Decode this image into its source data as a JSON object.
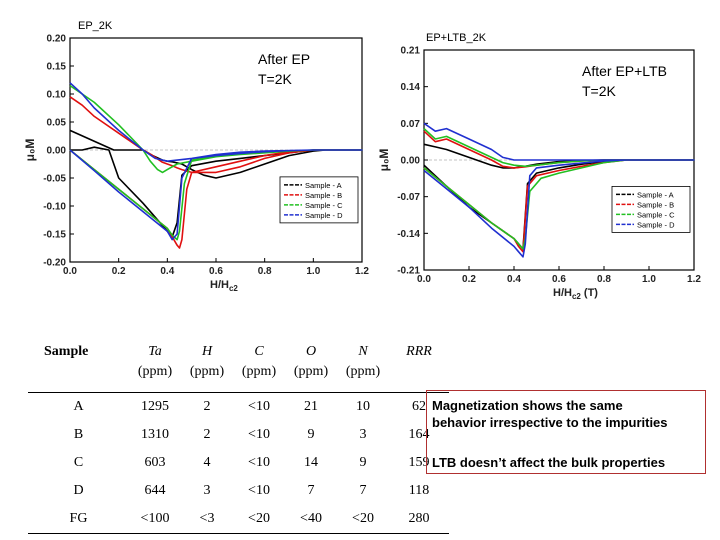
{
  "chart_data": [
    {
      "type": "line",
      "panel_tag": "EP_2K",
      "annotation": [
        "After EP",
        "T=2K"
      ],
      "xlabel": "H/H",
      "xlabel_sub": "c2",
      "ylabel": "μ₀M",
      "xlim": [
        0.0,
        1.2
      ],
      "ylim": [
        -0.2,
        0.2
      ],
      "x_ticks": [
        "0.0",
        "0.2",
        "0.4",
        "0.6",
        "0.8",
        "1.0",
        "1.2"
      ],
      "y_ticks": [
        "0.20",
        "0.15",
        "0.10",
        "0.05",
        "0.00",
        "-0.05",
        "-0.10",
        "-0.15",
        "-0.20"
      ],
      "legend_position": "right",
      "series": [
        {
          "name": "Sample - A",
          "color": "#000000",
          "x": [
            0.0,
            0.18,
            0.2,
            0.3,
            0.34,
            0.38,
            0.4,
            0.42,
            0.44,
            0.46,
            0.48,
            0.5,
            0.55,
            0.6,
            0.7,
            0.8,
            0.9,
            1.0,
            1.05,
            1.1,
            1.15,
            1.2,
            1.15,
            1.0,
            0.9,
            0.8,
            0.7,
            0.6,
            0.5,
            0.46,
            0.44,
            0.42,
            0.4,
            0.35,
            0.3,
            0.2,
            0.16,
            0.1,
            0.05,
            0.0
          ],
          "y": [
            0.035,
            0.0,
            0.0,
            0.0,
            -0.01,
            -0.018,
            -0.02,
            -0.021,
            -0.023,
            -0.025,
            -0.03,
            -0.035,
            -0.045,
            -0.05,
            -0.04,
            -0.025,
            -0.01,
            -0.002,
            0.0,
            0.0,
            0.0,
            0.0,
            0.0,
            0.0,
            -0.005,
            -0.01,
            -0.015,
            -0.02,
            -0.028,
            -0.045,
            -0.13,
            -0.155,
            -0.145,
            -0.12,
            -0.095,
            -0.05,
            0.0,
            0.005,
            0.0,
            0.0
          ]
        },
        {
          "name": "Sample - B",
          "color": "#e01010",
          "x": [
            0.0,
            0.05,
            0.1,
            0.2,
            0.3,
            0.34,
            0.38,
            0.4,
            0.42,
            0.44,
            0.46,
            0.5,
            0.6,
            0.7,
            0.8,
            0.9,
            1.0,
            1.1,
            1.2,
            1.1,
            1.0,
            0.9,
            0.8,
            0.7,
            0.6,
            0.5,
            0.48,
            0.46,
            0.45,
            0.44,
            0.42,
            0.4,
            0.3,
            0.2,
            0.1,
            0.0
          ],
          "y": [
            0.095,
            0.08,
            0.06,
            0.03,
            0.0,
            -0.01,
            -0.022,
            -0.025,
            -0.028,
            -0.032,
            -0.035,
            -0.04,
            -0.04,
            -0.03,
            -0.015,
            -0.005,
            0.0,
            0.0,
            0.0,
            0.0,
            0.0,
            -0.003,
            -0.01,
            -0.02,
            -0.03,
            -0.04,
            -0.07,
            -0.16,
            -0.175,
            -0.17,
            -0.155,
            -0.14,
            -0.105,
            -0.07,
            -0.035,
            0.0
          ]
        },
        {
          "name": "Sample - C",
          "color": "#22c022",
          "x": [
            0.0,
            0.05,
            0.1,
            0.2,
            0.3,
            0.33,
            0.36,
            0.38,
            0.4,
            0.44,
            0.5,
            0.6,
            0.7,
            0.8,
            0.9,
            1.0,
            1.1,
            1.2,
            1.1,
            1.0,
            0.9,
            0.8,
            0.7,
            0.6,
            0.5,
            0.47,
            0.45,
            0.44,
            0.42,
            0.4,
            0.3,
            0.2,
            0.1,
            0.0
          ],
          "y": [
            0.115,
            0.1,
            0.085,
            0.045,
            0.0,
            -0.02,
            -0.035,
            -0.04,
            -0.035,
            -0.025,
            -0.02,
            -0.012,
            -0.008,
            -0.005,
            -0.002,
            0.0,
            0.0,
            0.0,
            0.0,
            0.0,
            -0.002,
            -0.005,
            -0.008,
            -0.012,
            -0.018,
            -0.06,
            -0.145,
            -0.16,
            -0.152,
            -0.14,
            -0.105,
            -0.07,
            -0.035,
            0.0
          ]
        },
        {
          "name": "Sample - D",
          "color": "#2030d0",
          "x": [
            0.0,
            0.05,
            0.1,
            0.2,
            0.3,
            0.35,
            0.4,
            0.5,
            0.6,
            0.7,
            0.8,
            0.9,
            1.0,
            1.1,
            1.2,
            1.1,
            1.0,
            0.9,
            0.8,
            0.7,
            0.6,
            0.5,
            0.46,
            0.44,
            0.42,
            0.4,
            0.3,
            0.2,
            0.1,
            0.0
          ],
          "y": [
            0.12,
            0.1,
            0.075,
            0.035,
            0.0,
            -0.015,
            -0.02,
            -0.015,
            -0.008,
            -0.004,
            -0.002,
            -0.001,
            0.0,
            0.0,
            0.0,
            0.0,
            0.0,
            -0.001,
            -0.003,
            -0.006,
            -0.01,
            -0.015,
            -0.05,
            -0.15,
            -0.16,
            -0.145,
            -0.11,
            -0.075,
            -0.037,
            0.0
          ]
        }
      ]
    },
    {
      "type": "line",
      "panel_tag": "EP+LTB_2K",
      "annotation": [
        "After EP+LTB",
        "T=2K"
      ],
      "xlabel": "H/H",
      "xlabel_sub": "c2",
      "xlabel_unit": "(T)",
      "ylabel": "μ₀M",
      "xlim": [
        0.0,
        1.2
      ],
      "ylim": [
        -0.21,
        0.21
      ],
      "x_ticks": [
        "0.0",
        "0.2",
        "0.4",
        "0.6",
        "0.8",
        "1.0",
        "1.2"
      ],
      "y_ticks": [
        "0.21",
        "0.14",
        "0.07",
        "0.00",
        "-0.07",
        "-0.14",
        "-0.21"
      ],
      "legend_position": "right",
      "series": [
        {
          "name": "Sample - A",
          "color": "#000000",
          "x": [
            0.0,
            0.05,
            0.1,
            0.2,
            0.3,
            0.35,
            0.4,
            0.45,
            0.5,
            0.6,
            0.7,
            0.8,
            0.9,
            1.0,
            1.1,
            1.2,
            1.1,
            1.0,
            0.9,
            0.8,
            0.7,
            0.6,
            0.5,
            0.46,
            0.44,
            0.42,
            0.4,
            0.3,
            0.2,
            0.1,
            0.0
          ],
          "y": [
            0.03,
            0.025,
            0.02,
            0.005,
            -0.01,
            -0.015,
            -0.015,
            -0.012,
            -0.008,
            -0.003,
            -0.001,
            0.0,
            0.0,
            0.0,
            0.0,
            0.0,
            0.0,
            0.0,
            0.0,
            -0.003,
            -0.008,
            -0.015,
            -0.025,
            -0.045,
            -0.17,
            -0.16,
            -0.15,
            -0.12,
            -0.09,
            -0.05,
            -0.01
          ]
        },
        {
          "name": "Sample - B",
          "color": "#e01010",
          "x": [
            0.0,
            0.05,
            0.1,
            0.2,
            0.3,
            0.35,
            0.4,
            0.45,
            0.5,
            0.6,
            0.7,
            0.8,
            0.9,
            1.0,
            1.1,
            1.2,
            1.1,
            1.0,
            0.9,
            0.8,
            0.7,
            0.6,
            0.5,
            0.46,
            0.44,
            0.42,
            0.4,
            0.3,
            0.2,
            0.1,
            0.0
          ],
          "y": [
            0.055,
            0.035,
            0.04,
            0.02,
            0.0,
            -0.012,
            -0.015,
            -0.013,
            -0.01,
            -0.005,
            -0.002,
            0.0,
            0.0,
            0.0,
            0.0,
            0.0,
            0.0,
            0.0,
            0.0,
            -0.005,
            -0.012,
            -0.02,
            -0.03,
            -0.05,
            -0.175,
            -0.165,
            -0.15,
            -0.12,
            -0.085,
            -0.05,
            -0.015
          ]
        },
        {
          "name": "Sample - C",
          "color": "#22c022",
          "x": [
            0.0,
            0.05,
            0.1,
            0.2,
            0.3,
            0.35,
            0.4,
            0.45,
            0.5,
            0.6,
            0.7,
            0.8,
            0.9,
            1.0,
            1.1,
            1.2,
            1.1,
            1.0,
            0.9,
            0.8,
            0.7,
            0.6,
            0.52,
            0.47,
            0.45,
            0.44,
            0.42,
            0.4,
            0.3,
            0.2,
            0.1,
            0.0
          ],
          "y": [
            0.06,
            0.04,
            0.045,
            0.025,
            0.005,
            -0.005,
            -0.01,
            -0.012,
            -0.01,
            -0.005,
            -0.002,
            0.0,
            0.0,
            0.0,
            0.0,
            0.0,
            0.0,
            0.0,
            0.0,
            -0.005,
            -0.015,
            -0.025,
            -0.035,
            -0.06,
            -0.15,
            -0.17,
            -0.16,
            -0.15,
            -0.12,
            -0.085,
            -0.05,
            -0.015
          ]
        },
        {
          "name": "Sample - D",
          "color": "#2030d0",
          "x": [
            0.0,
            0.05,
            0.1,
            0.2,
            0.3,
            0.35,
            0.4,
            0.45,
            0.5,
            0.6,
            0.7,
            0.8,
            0.9,
            1.0,
            1.1,
            1.2,
            1.1,
            1.0,
            0.9,
            0.8,
            0.7,
            0.6,
            0.5,
            0.47,
            0.45,
            0.44,
            0.42,
            0.4,
            0.3,
            0.2,
            0.1,
            0.0
          ],
          "y": [
            0.07,
            0.055,
            0.06,
            0.04,
            0.02,
            0.005,
            0.0,
            0.0,
            0.0,
            0.0,
            0.0,
            0.0,
            0.0,
            0.0,
            0.0,
            0.0,
            0.0,
            0.0,
            0.0,
            -0.002,
            -0.006,
            -0.01,
            -0.015,
            -0.03,
            -0.16,
            -0.185,
            -0.175,
            -0.165,
            -0.13,
            -0.09,
            -0.055,
            -0.02
          ]
        }
      ]
    },
    {
      "type": "table",
      "columns": [
        {
          "name": "Sample",
          "unit": ""
        },
        {
          "name": "Ta",
          "unit": "(ppm)"
        },
        {
          "name": "H",
          "unit": "(ppm)"
        },
        {
          "name": "C",
          "unit": "(ppm)"
        },
        {
          "name": "O",
          "unit": "(ppm)"
        },
        {
          "name": "N",
          "unit": "(ppm)"
        },
        {
          "name": "RRR",
          "unit": ""
        }
      ],
      "rows": [
        [
          "A",
          "1295",
          "2",
          "<10",
          "21",
          "10",
          "62"
        ],
        [
          "B",
          "1310",
          "2",
          "<10",
          "9",
          "3",
          "164"
        ],
        [
          "C",
          "603",
          "4",
          "<10",
          "14",
          "9",
          "159"
        ],
        [
          "D",
          "644",
          "3",
          "<10",
          "7",
          "7",
          "118"
        ],
        [
          "FG",
          "<100",
          "<3",
          "<20",
          "<40",
          "<20",
          "280"
        ]
      ]
    }
  ],
  "notes": [
    "Magnetization shows the same\nbehavior irrespective to the impurities",
    "LTB doesn’t affect the bulk properties"
  ],
  "note_border_color": "#b03030"
}
